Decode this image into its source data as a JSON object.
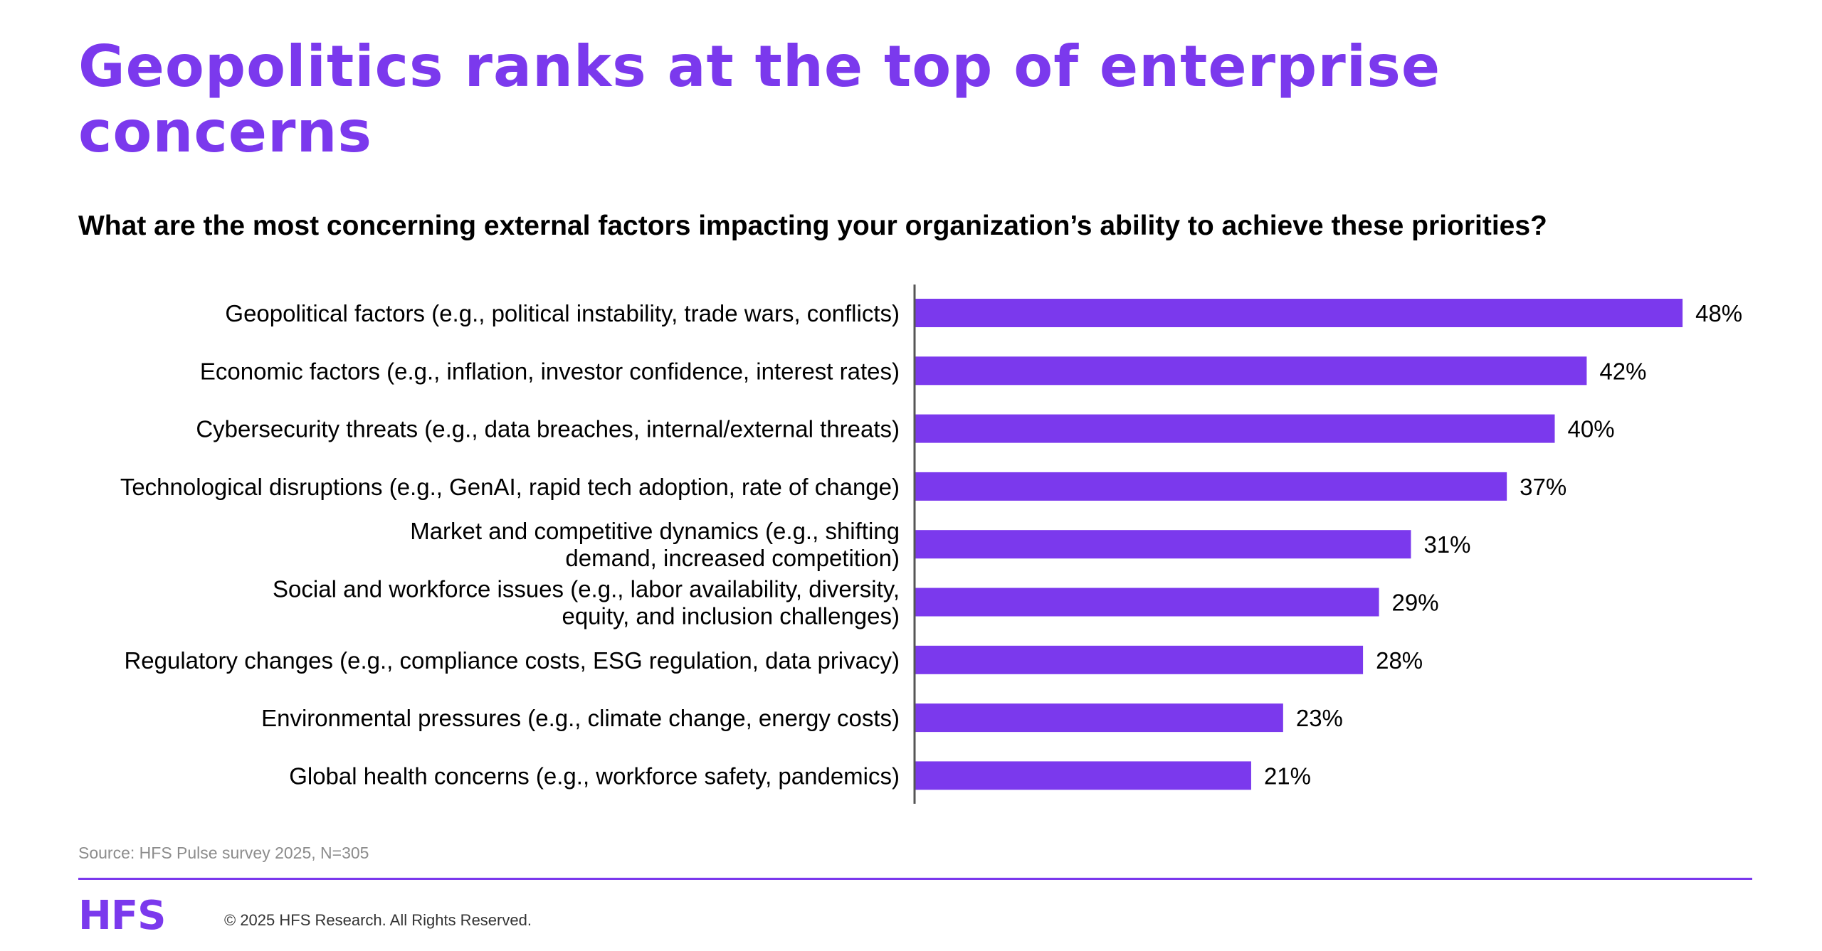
{
  "slide": {
    "headline": "Geopolitics ranks at the top of enterprise concerns",
    "question": "What are the most concerning external factors impacting your organization’s ability to achieve these priorities?",
    "source": "Source: HFS Pulse survey 2025, N=305",
    "logo_text": "HFS",
    "copyright": "© 2025 HFS Research. All Rights Reserved."
  },
  "colors": {
    "accent": "#7B39ED",
    "axis": "#555555"
  },
  "chart_data": {
    "type": "bar",
    "orientation": "horizontal",
    "title": "What are the most concerning external factors impacting your organization’s ability to achieve these priorities?",
    "xlabel": "",
    "ylabel": "",
    "xlim": [
      0,
      50
    ],
    "grid": false,
    "legend": "none",
    "value_suffix": "%",
    "categories": [
      [
        "Geopolitical factors (e.g., political instability, trade wars, conflicts)"
      ],
      [
        "Economic factors (e.g., inflation, investor confidence, interest rates)"
      ],
      [
        "Cybersecurity threats (e.g., data breaches, internal/external threats)"
      ],
      [
        "Technological disruptions (e.g., GenAI, rapid tech adoption, rate of change)"
      ],
      [
        "Market and competitive dynamics (e.g., shifting",
        "demand, increased competition)"
      ],
      [
        "Social and workforce issues (e.g., labor availability, diversity,",
        "equity, and inclusion challenges)"
      ],
      [
        "Regulatory changes (e.g., compliance costs, ESG regulation, data privacy)"
      ],
      [
        "Environmental pressures (e.g., climate change, energy costs)"
      ],
      [
        "Global health concerns (e.g., workforce safety, pandemics)"
      ]
    ],
    "values": [
      48,
      42,
      40,
      37,
      31,
      29,
      28,
      23,
      21
    ],
    "value_labels": [
      "48%",
      "42%",
      "40%",
      "37%",
      "31%",
      "29%",
      "28%",
      "23%",
      "21%"
    ]
  }
}
